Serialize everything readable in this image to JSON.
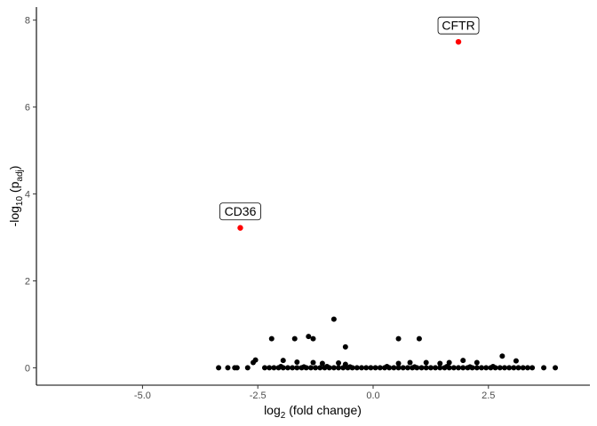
{
  "chart_data": {
    "type": "scatter",
    "title": "",
    "xlabel": {
      "base": "log",
      "sub": "2",
      "rest": " (fold change)"
    },
    "ylabel": {
      "base": "-log",
      "sub": "10",
      "mid": " (p",
      "sub2": "adj",
      "rest": ")"
    },
    "xlim": [
      -7.3,
      4.7
    ],
    "ylim": [
      -0.4,
      8.3
    ],
    "x_ticks": [
      -5.0,
      -2.5,
      0.0,
      2.5
    ],
    "x_tick_labels": [
      "-5.0",
      "-2.5",
      "0.0",
      "2.5"
    ],
    "y_ticks": [
      0,
      2,
      4,
      6,
      8
    ],
    "y_tick_labels": [
      "0",
      "2",
      "4",
      "6",
      "8"
    ],
    "grid": false,
    "colors": {
      "highlight": "#ff0000",
      "normal": "#000000"
    },
    "highlighted": [
      {
        "label": "CFTR",
        "x": 1.85,
        "y": 7.5
      },
      {
        "label": "CD36",
        "x": -2.88,
        "y": 3.22
      }
    ],
    "points": [
      [
        -0.85,
        1.12
      ],
      [
        -2.2,
        0.67
      ],
      [
        -1.7,
        0.67
      ],
      [
        -1.4,
        0.72
      ],
      [
        -1.3,
        0.67
      ],
      [
        0.55,
        0.67
      ],
      [
        1.0,
        0.67
      ],
      [
        -0.6,
        0.48
      ],
      [
        2.8,
        0.27
      ],
      [
        -2.55,
        0.18
      ],
      [
        -2.6,
        0.12
      ],
      [
        -1.95,
        0.17
      ],
      [
        -1.3,
        0.12
      ],
      [
        -1.1,
        0.1
      ],
      [
        -0.75,
        0.11
      ],
      [
        -0.6,
        0.08
      ],
      [
        0.55,
        0.1
      ],
      [
        0.8,
        0.12
      ],
      [
        1.15,
        0.12
      ],
      [
        1.45,
        0.1
      ],
      [
        1.65,
        0.12
      ],
      [
        1.95,
        0.17
      ],
      [
        2.25,
        0.12
      ],
      [
        3.1,
        0.16
      ],
      [
        -1.65,
        0.13
      ],
      [
        -3.35,
        0.0
      ],
      [
        -3.15,
        0.0
      ],
      [
        -3.0,
        0.0
      ],
      [
        -2.95,
        0.0
      ],
      [
        -2.72,
        0.0
      ],
      [
        -2.35,
        0.0
      ],
      [
        -2.25,
        0.0
      ],
      [
        -2.15,
        0.0
      ],
      [
        -2.05,
        0.0
      ],
      [
        -1.95,
        0.0
      ],
      [
        -1.85,
        0.0
      ],
      [
        -1.75,
        0.0
      ],
      [
        -1.65,
        0.0
      ],
      [
        -1.55,
        0.0
      ],
      [
        -1.45,
        0.0
      ],
      [
        -1.35,
        0.0
      ],
      [
        -1.25,
        0.0
      ],
      [
        -1.15,
        0.0
      ],
      [
        -1.05,
        0.0
      ],
      [
        -0.95,
        0.0
      ],
      [
        -0.85,
        0.0
      ],
      [
        -0.75,
        0.0
      ],
      [
        -0.65,
        0.0
      ],
      [
        -0.55,
        0.0
      ],
      [
        -0.45,
        0.0
      ],
      [
        -0.35,
        0.0
      ],
      [
        -0.25,
        0.0
      ],
      [
        -0.15,
        0.0
      ],
      [
        -0.05,
        0.0
      ],
      [
        0.05,
        0.0
      ],
      [
        0.15,
        0.0
      ],
      [
        0.25,
        0.0
      ],
      [
        0.35,
        0.0
      ],
      [
        0.45,
        0.0
      ],
      [
        0.55,
        0.0
      ],
      [
        0.65,
        0.0
      ],
      [
        0.75,
        0.0
      ],
      [
        0.85,
        0.0
      ],
      [
        0.95,
        0.0
      ],
      [
        1.05,
        0.0
      ],
      [
        1.15,
        0.0
      ],
      [
        1.25,
        0.0
      ],
      [
        1.35,
        0.0
      ],
      [
        1.45,
        0.0
      ],
      [
        1.55,
        0.0
      ],
      [
        1.65,
        0.0
      ],
      [
        1.75,
        0.0
      ],
      [
        1.85,
        0.0
      ],
      [
        1.95,
        0.0
      ],
      [
        2.05,
        0.0
      ],
      [
        2.15,
        0.0
      ],
      [
        2.25,
        0.0
      ],
      [
        2.35,
        0.0
      ],
      [
        2.45,
        0.0
      ],
      [
        2.55,
        0.0
      ],
      [
        2.65,
        0.0
      ],
      [
        2.75,
        0.0
      ],
      [
        2.85,
        0.0
      ],
      [
        2.95,
        0.0
      ],
      [
        3.05,
        0.0
      ],
      [
        3.15,
        0.0
      ],
      [
        3.25,
        0.0
      ],
      [
        3.35,
        0.0
      ],
      [
        3.45,
        0.0
      ],
      [
        3.7,
        0.0
      ],
      [
        3.95,
        0.0
      ],
      [
        -1.5,
        0.02
      ],
      [
        -1.0,
        0.03
      ],
      [
        -0.5,
        0.02
      ],
      [
        0.3,
        0.03
      ],
      [
        0.9,
        0.02
      ],
      [
        1.6,
        0.03
      ],
      [
        2.1,
        0.02
      ],
      [
        2.6,
        0.03
      ],
      [
        -2.0,
        0.03
      ]
    ]
  }
}
